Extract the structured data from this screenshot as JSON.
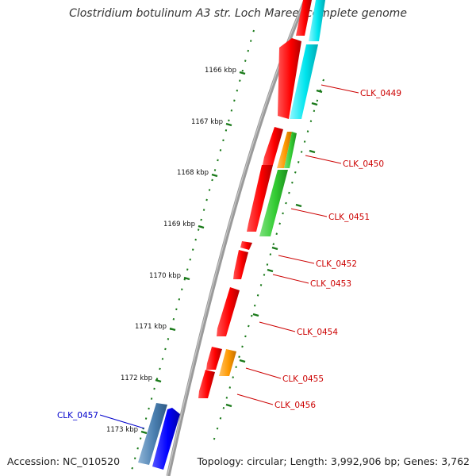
{
  "title": "Clostridium botulinum A3 str. Loch Maree, complete genome",
  "footer": {
    "accession": "Accession: NC_010520",
    "topology": "Topology: circular; Length: 3,992,906 bp; Genes: 3,762"
  },
  "ruler": {
    "ticks": [
      "1166 kbp",
      "1167 kbp",
      "1168 kbp",
      "1169 kbp",
      "1170 kbp",
      "1171 kbp",
      "1172 kbp",
      "1173 kbp"
    ]
  },
  "genes": [
    {
      "label": "CLK_0449",
      "color": "#cc0000"
    },
    {
      "label": "CLK_0450",
      "color": "#cc0000"
    },
    {
      "label": "CLK_0451",
      "color": "#cc0000"
    },
    {
      "label": "CLK_0452",
      "color": "#cc0000"
    },
    {
      "label": "CLK_0453",
      "color": "#cc0000"
    },
    {
      "label": "CLK_0454",
      "color": "#cc0000"
    },
    {
      "label": "CLK_0455",
      "color": "#cc0000"
    },
    {
      "label": "CLK_0456",
      "color": "#cc0000"
    },
    {
      "label": "CLK_0457",
      "color": "#0000cc"
    }
  ],
  "colors": {
    "cds_red": "#ff0000",
    "cds_blue": "#0000ff",
    "cog_cyan": "#00e5ee",
    "cog_green": "#33cc33",
    "cog_orange": "#ff9900",
    "cog_steelblue": "#4a7fb0",
    "backbone": "#888888",
    "tick_green": "#1a7a1a"
  }
}
